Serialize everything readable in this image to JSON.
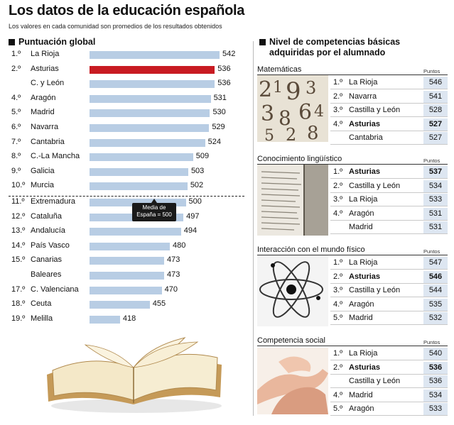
{
  "title": "Los datos de la educación española",
  "subtitle": "Los valores en cada comunidad son promedios de los resultados obtenidos",
  "left_heading": "Puntuación global",
  "right_heading_line1": "Nivel de competencias básicas",
  "right_heading_line2": "adquiridas por el alumnado",
  "media_line1": "Media de",
  "media_line2": "España = 500",
  "colors": {
    "bar": "#b8cde4",
    "highlight": "#c81b22",
    "value_box": "#dde6f1"
  },
  "chart_data": [
    {
      "type": "bar",
      "title": "Puntuación global",
      "orientation": "horizontal",
      "highlight": "Asturias",
      "reference_line": {
        "value": 500,
        "label": "Media de España = 500"
      },
      "rows": [
        {
          "rank": "1.º",
          "name": "La Rioja",
          "value": 542
        },
        {
          "rank": "2.º",
          "name": "Asturias",
          "value": 536
        },
        {
          "rank": "",
          "name": "C. y León",
          "value": 536
        },
        {
          "rank": "4.º",
          "name": "Aragón",
          "value": 531
        },
        {
          "rank": "5.º",
          "name": "Madrid",
          "value": 530
        },
        {
          "rank": "6.º",
          "name": "Navarra",
          "value": 529
        },
        {
          "rank": "7.º",
          "name": "Cantabria",
          "value": 524
        },
        {
          "rank": "8.º",
          "name": "C.-La Mancha",
          "value": 509
        },
        {
          "rank": "9.º",
          "name": "Galicia",
          "value": 503
        },
        {
          "rank": "10.º",
          "name": "Murcia",
          "value": 502
        },
        {
          "rank": "11.º",
          "name": "Extremadura",
          "value": 500
        },
        {
          "rank": "12.º",
          "name": "Cataluña",
          "value": 497
        },
        {
          "rank": "13.º",
          "name": "Andalucía",
          "value": 494
        },
        {
          "rank": "14.º",
          "name": "País Vasco",
          "value": 480
        },
        {
          "rank": "15.º",
          "name": "Canarias",
          "value": 473
        },
        {
          "rank": "",
          "name": "Baleares",
          "value": 473
        },
        {
          "rank": "17.º",
          "name": "C. Valenciana",
          "value": 470
        },
        {
          "rank": "18.º",
          "name": "Ceuta",
          "value": 455
        },
        {
          "rank": "19.º",
          "name": "Melilla",
          "value": 418
        }
      ]
    },
    {
      "type": "table",
      "title": "Matemáticas",
      "column_label": "Puntos",
      "rows": [
        {
          "rank": "1.º",
          "name": "La Rioja",
          "value": 546,
          "bold": false
        },
        {
          "rank": "2.º",
          "name": "Navarra",
          "value": 541,
          "bold": false
        },
        {
          "rank": "3.º",
          "name": "Castilla y León",
          "value": 528,
          "bold": false
        },
        {
          "rank": "4.º",
          "name": "Asturias",
          "value": 527,
          "bold": true
        },
        {
          "rank": "",
          "name": "Cantabria",
          "value": 527,
          "bold": false
        }
      ]
    },
    {
      "type": "table",
      "title": "Conocimiento lingüístico",
      "column_label": "Puntos",
      "rows": [
        {
          "rank": "1.º",
          "name": "Asturias",
          "value": 537,
          "bold": true
        },
        {
          "rank": "2.º",
          "name": "Castilla y León",
          "value": 534,
          "bold": false
        },
        {
          "rank": "3.º",
          "name": "La Rioja",
          "value": 533,
          "bold": false
        },
        {
          "rank": "4.º",
          "name": "Aragón",
          "value": 531,
          "bold": false
        },
        {
          "rank": "",
          "name": "Madrid",
          "value": 531,
          "bold": false
        }
      ]
    },
    {
      "type": "table",
      "title": "Interacción con el mundo físico",
      "column_label": "Puntos",
      "rows": [
        {
          "rank": "1.º",
          "name": "La Rioja",
          "value": 547,
          "bold": false
        },
        {
          "rank": "2.º",
          "name": "Asturias",
          "value": 546,
          "bold": true
        },
        {
          "rank": "3.º",
          "name": "Castilla y León",
          "value": 544,
          "bold": false
        },
        {
          "rank": "4.º",
          "name": "Aragón",
          "value": 535,
          "bold": false
        },
        {
          "rank": "5.º",
          "name": "Madrid",
          "value": 532,
          "bold": false
        }
      ]
    },
    {
      "type": "table",
      "title": "Competencia social",
      "column_label": "Puntos",
      "rows": [
        {
          "rank": "1.º",
          "name": "La Rioja",
          "value": 540,
          "bold": false
        },
        {
          "rank": "2.º",
          "name": "Asturias",
          "value": 536,
          "bold": true
        },
        {
          "rank": "",
          "name": "Castilla y León",
          "value": 536,
          "bold": false
        },
        {
          "rank": "4.º",
          "name": "Madrid",
          "value": 534,
          "bold": false
        },
        {
          "rank": "5.º",
          "name": "Aragón",
          "value": 533,
          "bold": false
        }
      ]
    }
  ]
}
